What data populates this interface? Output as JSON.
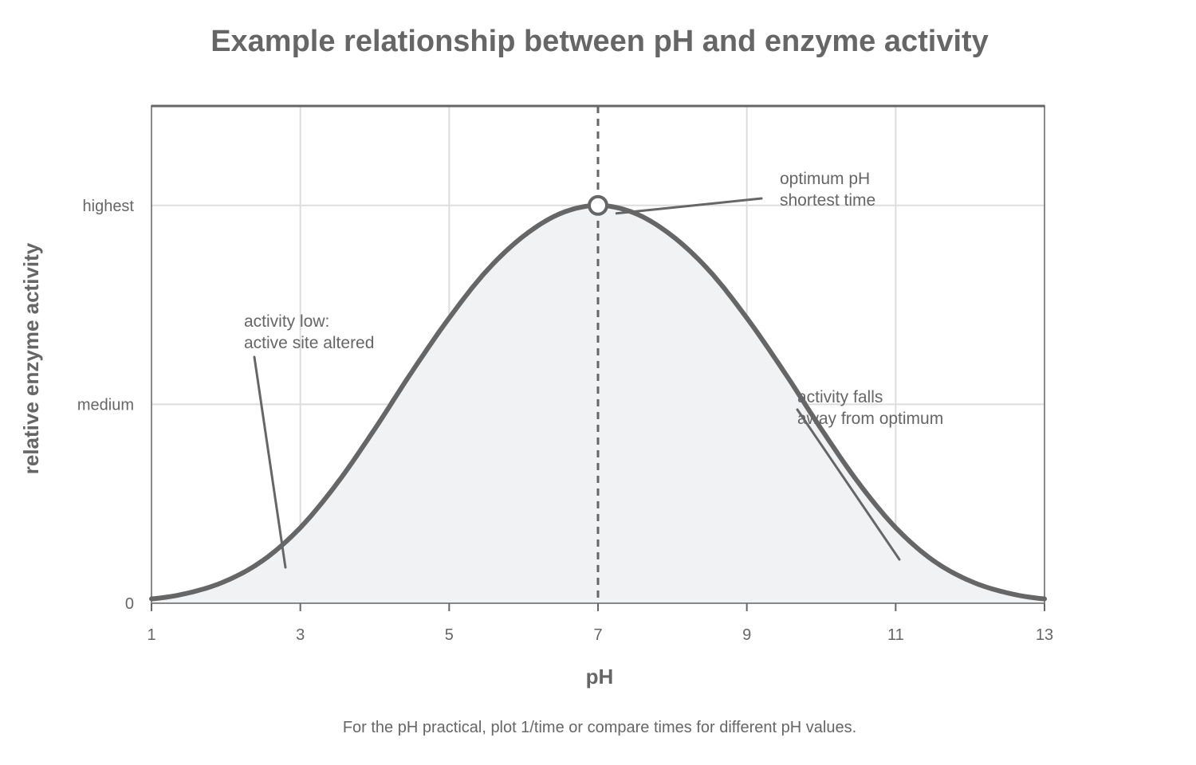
{
  "chart_data": {
    "type": "line",
    "title": "Example relationship between pH and enzyme activity",
    "xlabel": "pH",
    "ylabel": "relative enzyme activity",
    "footnote": "For the pH practical, plot 1/time or compare times for different pH values.",
    "xlim": [
      1,
      13
    ],
    "ylim": [
      0,
      1.25
    ],
    "x_ticks": [
      1,
      3,
      5,
      7,
      9,
      11,
      13
    ],
    "y_ticks": [
      {
        "value": 0,
        "label": "0"
      },
      {
        "value": 0.5,
        "label": "medium"
      },
      {
        "value": 1,
        "label": "highest"
      }
    ],
    "grid": true,
    "filled_area": true,
    "series": [
      {
        "x": [
          1,
          1.5,
          2,
          2.5,
          3,
          3.5,
          4,
          4.5,
          5,
          5.5,
          6,
          6.5,
          7,
          7.5,
          8,
          8.5,
          9,
          9.5,
          10,
          10.5,
          11,
          11.5,
          12,
          12.5,
          13
        ],
        "y": [
          0.011,
          0.026,
          0.056,
          0.108,
          0.19,
          0.303,
          0.438,
          0.582,
          0.717,
          0.835,
          0.923,
          0.98,
          1.0,
          0.98,
          0.923,
          0.835,
          0.717,
          0.582,
          0.438,
          0.303,
          0.19,
          0.108,
          0.056,
          0.026,
          0.011
        ]
      }
    ],
    "optimum": {
      "x": 7,
      "y": 1
    },
    "annotations": [
      {
        "lines": [
          "optimum pH",
          "shortest time"
        ],
        "points_to": {
          "x": 7.25,
          "y": 0.98
        }
      },
      {
        "lines": [
          "activity low:",
          "active site altered"
        ],
        "points_to": {
          "x": 2.8,
          "y": 0.09
        }
      },
      {
        "lines": [
          "activity falls",
          "away from optimum"
        ],
        "points_to": {
          "x": 11.05,
          "y": 0.11
        }
      }
    ],
    "colors": {
      "line": "#666666",
      "fill": "#f1f2f4",
      "grid": "#dddddd",
      "text": "#666666"
    }
  }
}
